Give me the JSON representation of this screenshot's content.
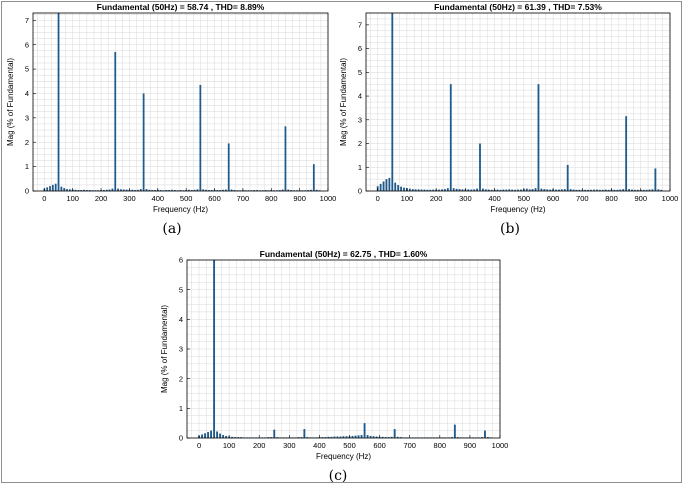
{
  "chart_data": [
    {
      "type": "bar",
      "panel_label": "(a)",
      "title": "Fundamental (50Hz) = 58.74 , THD= 8.89%",
      "xlabel": "Frequency (Hz)",
      "ylabel": "Mag (% of Fundamental)",
      "xlim": [
        -40,
        1000
      ],
      "ylim": [
        0,
        7.3
      ],
      "xticks": [
        0,
        100,
        200,
        300,
        400,
        500,
        600,
        700,
        800,
        900,
        1000
      ],
      "yticks": [
        0,
        1,
        2,
        3,
        4,
        5,
        6,
        7
      ],
      "grid": true,
      "x": [
        0,
        10,
        20,
        30,
        40,
        50,
        60,
        70,
        80,
        90,
        100,
        110,
        120,
        130,
        140,
        150,
        160,
        170,
        180,
        190,
        200,
        210,
        220,
        230,
        240,
        250,
        260,
        270,
        280,
        290,
        300,
        310,
        320,
        330,
        340,
        350,
        360,
        370,
        380,
        390,
        400,
        410,
        420,
        430,
        440,
        450,
        460,
        470,
        480,
        490,
        500,
        510,
        520,
        530,
        540,
        550,
        560,
        570,
        580,
        590,
        600,
        610,
        620,
        630,
        640,
        650,
        660,
        670,
        680,
        690,
        700,
        710,
        720,
        730,
        740,
        750,
        760,
        770,
        780,
        790,
        800,
        810,
        820,
        830,
        840,
        850,
        860,
        870,
        880,
        890,
        900,
        910,
        920,
        930,
        940,
        950,
        960,
        970
      ],
      "values": [
        0.1,
        0.15,
        0.2,
        0.25,
        0.3,
        7.3,
        0.18,
        0.12,
        0.08,
        0.07,
        0.06,
        0.05,
        0.04,
        0.04,
        0.05,
        0.04,
        0.04,
        0.03,
        0.03,
        0.03,
        0.04,
        0.04,
        0.05,
        0.06,
        0.1,
        5.7,
        0.1,
        0.07,
        0.06,
        0.06,
        0.05,
        0.05,
        0.04,
        0.05,
        0.08,
        4.0,
        0.08,
        0.05,
        0.04,
        0.04,
        0.05,
        0.04,
        0.03,
        0.04,
        0.04,
        0.05,
        0.04,
        0.03,
        0.04,
        0.03,
        0.04,
        0.05,
        0.04,
        0.05,
        0.07,
        4.35,
        0.07,
        0.05,
        0.04,
        0.04,
        0.05,
        0.04,
        0.04,
        0.05,
        0.06,
        1.95,
        0.06,
        0.04,
        0.03,
        0.03,
        0.04,
        0.03,
        0.03,
        0.03,
        0.04,
        0.04,
        0.03,
        0.03,
        0.04,
        0.03,
        0.04,
        0.03,
        0.03,
        0.04,
        0.06,
        2.65,
        0.06,
        0.04,
        0.03,
        0.03,
        0.03,
        0.03,
        0.03,
        0.04,
        0.05,
        1.1,
        0.05,
        0.03
      ]
    },
    {
      "type": "bar",
      "panel_label": "(b)",
      "title": "Fundamental (50Hz) = 61.39 , THD= 7.53%",
      "xlabel": "Frequency (Hz)",
      "ylabel": "Mag (% of Fundamental)",
      "xlim": [
        -40,
        1000
      ],
      "ylim": [
        0,
        7.5
      ],
      "xticks": [
        0,
        100,
        200,
        300,
        400,
        500,
        600,
        700,
        800,
        900,
        1000
      ],
      "yticks": [
        0,
        1,
        2,
        3,
        4,
        5,
        6,
        7
      ],
      "grid": true,
      "x": [
        0,
        10,
        20,
        30,
        40,
        50,
        60,
        70,
        80,
        90,
        100,
        110,
        120,
        130,
        140,
        150,
        160,
        170,
        180,
        190,
        200,
        210,
        220,
        230,
        240,
        250,
        260,
        270,
        280,
        290,
        300,
        310,
        320,
        330,
        340,
        350,
        360,
        370,
        380,
        390,
        400,
        410,
        420,
        430,
        440,
        450,
        460,
        470,
        480,
        490,
        500,
        510,
        520,
        530,
        540,
        550,
        560,
        570,
        580,
        590,
        600,
        610,
        620,
        630,
        640,
        650,
        660,
        670,
        680,
        690,
        700,
        710,
        720,
        730,
        740,
        750,
        760,
        770,
        780,
        790,
        800,
        810,
        820,
        830,
        840,
        850,
        860,
        870,
        880,
        890,
        900,
        910,
        920,
        930,
        940,
        950,
        960,
        970
      ],
      "values": [
        0.2,
        0.3,
        0.4,
        0.5,
        0.55,
        7.5,
        0.35,
        0.25,
        0.18,
        0.14,
        0.12,
        0.1,
        0.08,
        0.07,
        0.07,
        0.06,
        0.06,
        0.05,
        0.05,
        0.06,
        0.06,
        0.06,
        0.07,
        0.08,
        0.12,
        4.5,
        0.12,
        0.09,
        0.08,
        0.07,
        0.07,
        0.07,
        0.06,
        0.07,
        0.1,
        2.0,
        0.1,
        0.07,
        0.06,
        0.05,
        0.06,
        0.06,
        0.05,
        0.06,
        0.06,
        0.07,
        0.06,
        0.05,
        0.06,
        0.06,
        0.08,
        0.1,
        0.07,
        0.08,
        0.12,
        4.5,
        0.1,
        0.08,
        0.07,
        0.06,
        0.07,
        0.06,
        0.06,
        0.07,
        0.08,
        1.1,
        0.08,
        0.06,
        0.05,
        0.05,
        0.05,
        0.05,
        0.05,
        0.05,
        0.06,
        0.06,
        0.05,
        0.05,
        0.06,
        0.05,
        0.06,
        0.05,
        0.05,
        0.06,
        0.08,
        3.15,
        0.08,
        0.06,
        0.05,
        0.05,
        0.05,
        0.05,
        0.05,
        0.06,
        0.07,
        0.95,
        0.07,
        0.05
      ]
    },
    {
      "type": "bar",
      "panel_label": "(c)",
      "title": "Fundamental (50Hz) = 62.75 , THD= 1.60%",
      "xlabel": "Frequency (Hz)",
      "ylabel": "Mag (% of Fundamental)",
      "xlim": [
        -40,
        1000
      ],
      "ylim": [
        0,
        6
      ],
      "xticks": [
        0,
        100,
        200,
        300,
        400,
        500,
        600,
        700,
        800,
        900,
        1000
      ],
      "yticks": [
        0,
        1,
        2,
        3,
        4,
        5,
        6
      ],
      "grid": true,
      "x": [
        0,
        10,
        20,
        30,
        40,
        50,
        60,
        70,
        80,
        90,
        100,
        110,
        120,
        130,
        140,
        150,
        160,
        170,
        180,
        190,
        200,
        210,
        220,
        230,
        240,
        250,
        260,
        270,
        280,
        290,
        300,
        310,
        320,
        330,
        340,
        350,
        360,
        370,
        380,
        390,
        400,
        410,
        420,
        430,
        440,
        450,
        460,
        470,
        480,
        490,
        500,
        510,
        520,
        530,
        540,
        550,
        560,
        570,
        580,
        590,
        600,
        610,
        620,
        630,
        640,
        650,
        660,
        670,
        680,
        690,
        700,
        710,
        720,
        730,
        740,
        750,
        760,
        770,
        780,
        790,
        800,
        810,
        820,
        830,
        840,
        850,
        860,
        870,
        880,
        890,
        900,
        910,
        920,
        930,
        940,
        950,
        960,
        970
      ],
      "values": [
        0.08,
        0.12,
        0.16,
        0.2,
        0.25,
        6.0,
        0.22,
        0.15,
        0.1,
        0.07,
        0.05,
        0.04,
        0.03,
        0.03,
        0.03,
        0.02,
        0.02,
        0.02,
        0.02,
        0.02,
        0.02,
        0.02,
        0.02,
        0.03,
        0.03,
        0.28,
        0.03,
        0.02,
        0.02,
        0.02,
        0.02,
        0.02,
        0.02,
        0.03,
        0.03,
        0.3,
        0.03,
        0.02,
        0.02,
        0.02,
        0.03,
        0.03,
        0.03,
        0.04,
        0.04,
        0.05,
        0.05,
        0.05,
        0.06,
        0.06,
        0.06,
        0.07,
        0.08,
        0.09,
        0.1,
        0.5,
        0.1,
        0.07,
        0.06,
        0.05,
        0.04,
        0.04,
        0.03,
        0.03,
        0.04,
        0.3,
        0.04,
        0.03,
        0.02,
        0.02,
        0.02,
        0.02,
        0.02,
        0.02,
        0.02,
        0.02,
        0.02,
        0.02,
        0.02,
        0.02,
        0.02,
        0.02,
        0.02,
        0.02,
        0.03,
        0.45,
        0.03,
        0.02,
        0.02,
        0.02,
        0.02,
        0.02,
        0.02,
        0.02,
        0.03,
        0.25,
        0.03,
        0.02
      ]
    }
  ],
  "colors": {
    "bar": "#1f5a8c",
    "grid": "#d8d8d8",
    "axis": "#000000"
  }
}
